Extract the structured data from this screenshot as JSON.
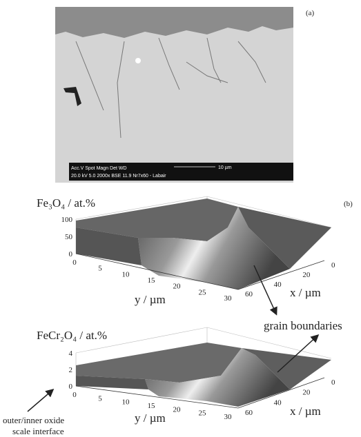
{
  "panel_a": {
    "label": "(a)",
    "info_bar": {
      "line1": "Acc.V   Spot  Magn    Det   WD",
      "line2": "20.0 kV 5.0   2000x   BSE  11.9   Nr7x60 - Labair",
      "scale": "10 µm"
    }
  },
  "panel_b": {
    "label": "(b)",
    "plots": [
      {
        "z_label": "Fe₃O₄ / at.%",
        "z_ticks": [
          100,
          50,
          0
        ],
        "y_label": "y / µm",
        "y_ticks": [
          0,
          5,
          10,
          15,
          20,
          25,
          30
        ],
        "x_label": "x / µm",
        "x_ticks": [
          60,
          40,
          20,
          0
        ]
      },
      {
        "z_label": "FeCr₂O₄ / at.%",
        "z_ticks": [
          4,
          2,
          0
        ],
        "y_label": "y / µm",
        "y_ticks": [
          0,
          5,
          10,
          15,
          20,
          25,
          30
        ],
        "x_label": "x / µm",
        "x_ticks": [
          60,
          40,
          20,
          0
        ]
      }
    ],
    "annotations": {
      "grain_boundaries": "grain boundaries",
      "interface_line1": "outer/inner oxide",
      "interface_line2": "scale interface"
    }
  }
}
